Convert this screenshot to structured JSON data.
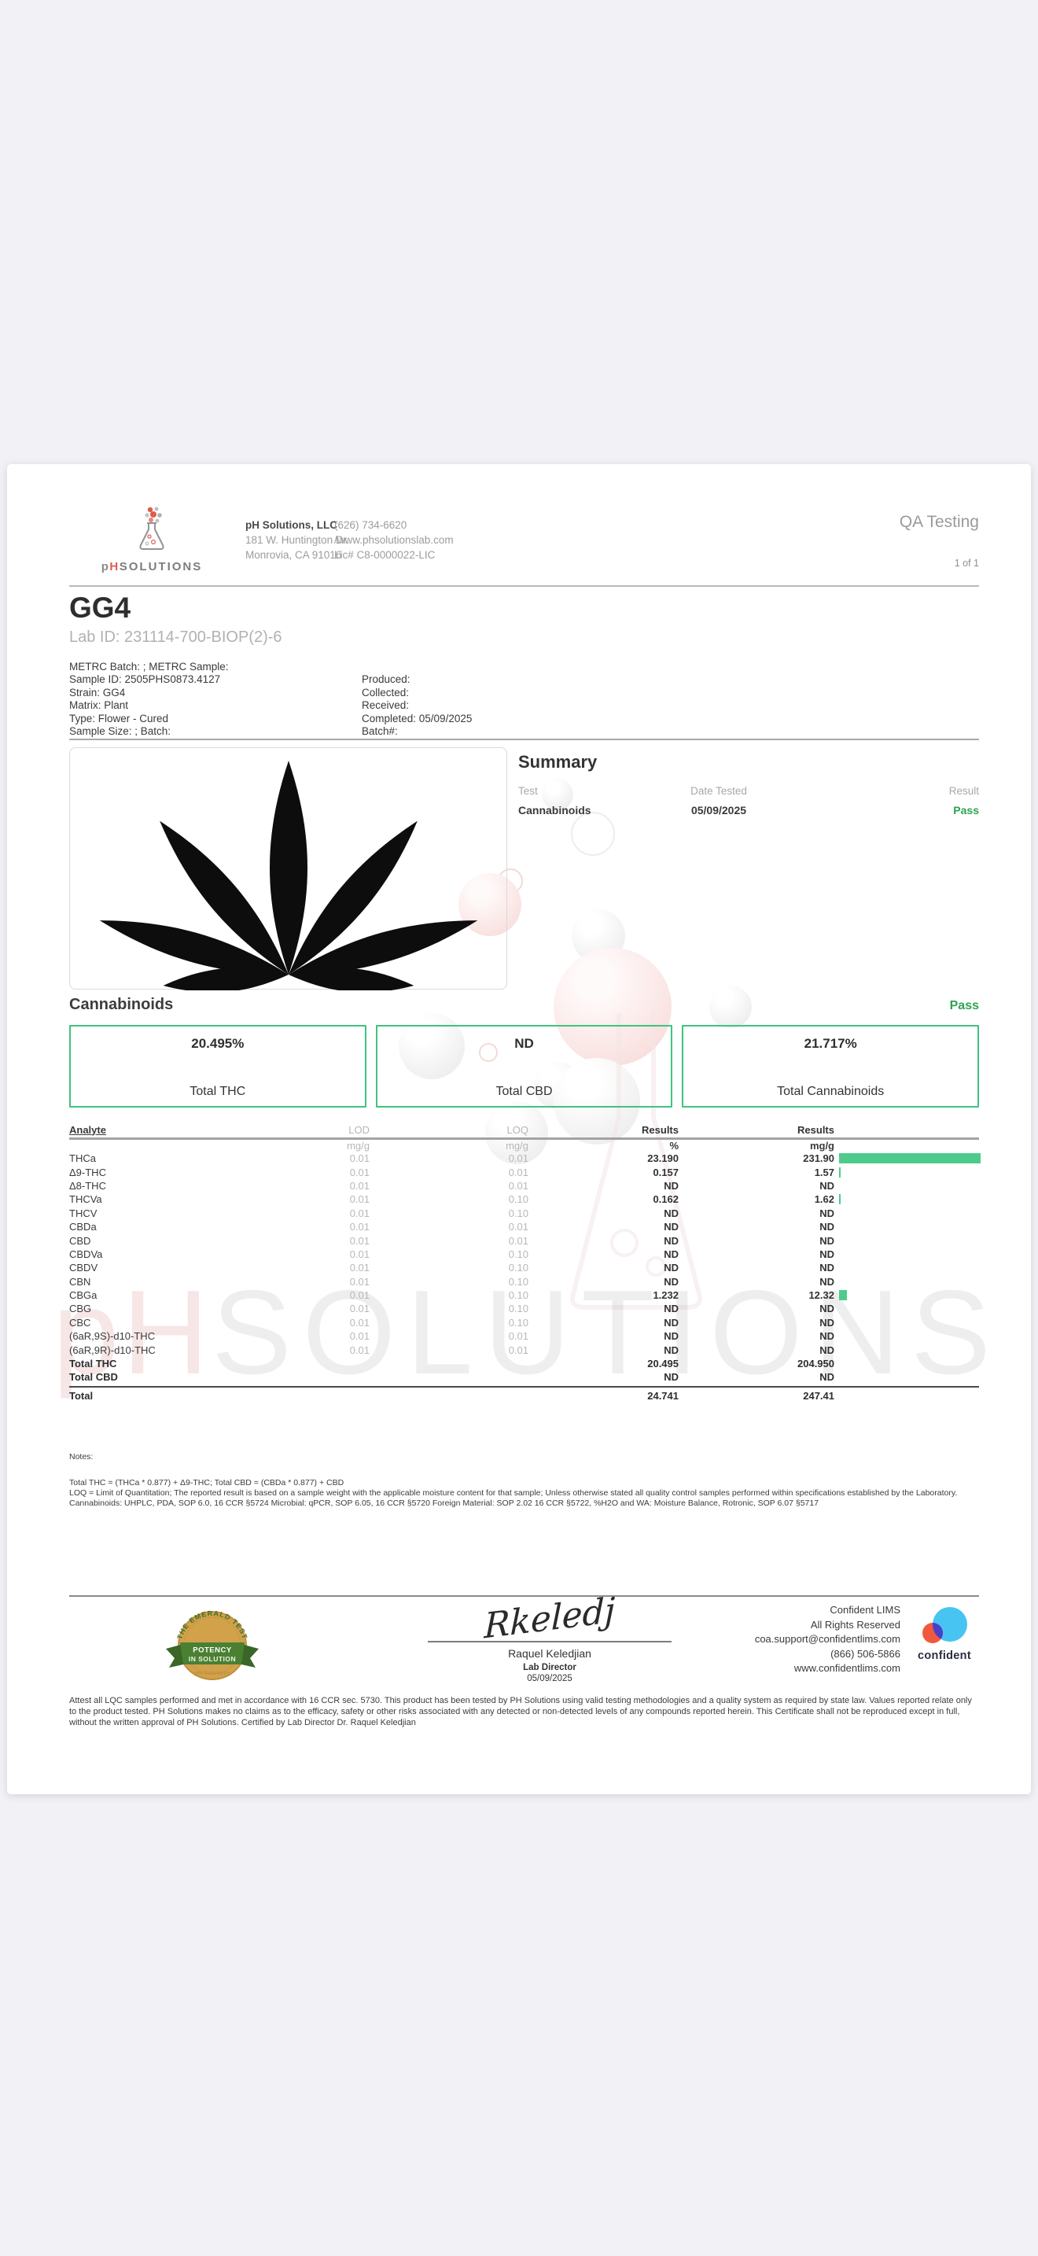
{
  "header": {
    "qa_label": "QA Testing",
    "page_num": "1 of 1",
    "logo": {
      "p": "p",
      "h": "H",
      "solutions": "SOLUTIONS"
    },
    "company": {
      "name": "pH Solutions, LLC",
      "address1": "181 W. Huntington Dr.",
      "address2": "Monrovia, CA 91016"
    },
    "contact": {
      "phone": "(626) 734-6620",
      "website": "/www.phsolutionslab.com",
      "license": "Lic# C8-0000022-LIC"
    }
  },
  "sample": {
    "name": "GG4",
    "lab_id": "Lab ID: 231114-700-BIOP(2)-6",
    "meta": [
      {
        "left": "METRC Batch: ; METRC Sample:",
        "right": ""
      },
      {
        "left": "Sample ID: 2505PHS0873.4127",
        "right": "Produced:"
      },
      {
        "left": "Strain: GG4",
        "right": "Collected:"
      },
      {
        "left": "Matrix: Plant",
        "right": "Received:"
      },
      {
        "left": "Type: Flower - Cured",
        "right": "Completed: 05/09/2025"
      },
      {
        "left": "Sample Size: ; Batch:",
        "right": "Batch#:"
      }
    ]
  },
  "summary": {
    "heading": "Summary",
    "columns": [
      "Test",
      "Date Tested",
      "Result"
    ],
    "rows": [
      {
        "test": "Cannabinoids",
        "date": "05/09/2025",
        "result": "Pass"
      }
    ]
  },
  "cannabinoids": {
    "heading": "Cannabinoids",
    "status": "Pass",
    "boxes": [
      {
        "value": "20.495%",
        "label": "Total THC"
      },
      {
        "value": "ND",
        "label": "Total CBD"
      },
      {
        "value": "21.717%",
        "label": "Total Cannabinoids"
      }
    ]
  },
  "results_table": {
    "columns": {
      "analyte": "Analyte",
      "lod": "LOD",
      "loq": "LOQ",
      "results_pct": "Results",
      "results_mgg": "Results"
    },
    "units": {
      "lod": "mg/g",
      "loq": "mg/g",
      "pct": "%",
      "mgg": "mg/g"
    },
    "bar_scale_max": 231.9,
    "rows": [
      {
        "analyte": "THCa",
        "lod": "0.01",
        "loq": "0.01",
        "pct": "23.190",
        "mgg": "231.90",
        "bar": 231.9
      },
      {
        "analyte": "Δ9-THC",
        "lod": "0.01",
        "loq": "0.01",
        "pct": "0.157",
        "mgg": "1.57",
        "bar": 1.57
      },
      {
        "analyte": "Δ8-THC",
        "lod": "0.01",
        "loq": "0.01",
        "pct": "ND",
        "mgg": "ND",
        "bar": 0
      },
      {
        "analyte": "THCVa",
        "lod": "0.01",
        "loq": "0.10",
        "pct": "0.162",
        "mgg": "1.62",
        "bar": 1.62
      },
      {
        "analyte": "THCV",
        "lod": "0.01",
        "loq": "0.10",
        "pct": "ND",
        "mgg": "ND",
        "bar": 0
      },
      {
        "analyte": "CBDa",
        "lod": "0.01",
        "loq": "0.01",
        "pct": "ND",
        "mgg": "ND",
        "bar": 0
      },
      {
        "analyte": "CBD",
        "lod": "0.01",
        "loq": "0.01",
        "pct": "ND",
        "mgg": "ND",
        "bar": 0
      },
      {
        "analyte": "CBDVa",
        "lod": "0.01",
        "loq": "0.10",
        "pct": "ND",
        "mgg": "ND",
        "bar": 0
      },
      {
        "analyte": "CBDV",
        "lod": "0.01",
        "loq": "0.10",
        "pct": "ND",
        "mgg": "ND",
        "bar": 0
      },
      {
        "analyte": "CBN",
        "lod": "0.01",
        "loq": "0.10",
        "pct": "ND",
        "mgg": "ND",
        "bar": 0
      },
      {
        "analyte": "CBGa",
        "lod": "0.01",
        "loq": "0.10",
        "pct": "1.232",
        "mgg": "12.32",
        "bar": 12.32
      },
      {
        "analyte": "CBG",
        "lod": "0.01",
        "loq": "0.10",
        "pct": "ND",
        "mgg": "ND",
        "bar": 0
      },
      {
        "analyte": "CBC",
        "lod": "0.01",
        "loq": "0.10",
        "pct": "ND",
        "mgg": "ND",
        "bar": 0
      },
      {
        "analyte": "(6aR,9S)-d10-THC",
        "lod": "0.01",
        "loq": "0.01",
        "pct": "ND",
        "mgg": "ND",
        "bar": 0
      },
      {
        "analyte": "(6aR,9R)-d10-THC",
        "lod": "0.01",
        "loq": "0.01",
        "pct": "ND",
        "mgg": "ND",
        "bar": 0
      }
    ],
    "totals": [
      {
        "analyte": "Total THC",
        "pct": "20.495",
        "mgg": "204.950",
        "final": false
      },
      {
        "analyte": "Total CBD",
        "pct": "ND",
        "mgg": "ND",
        "final": false
      },
      {
        "analyte": "Total",
        "pct": "24.741",
        "mgg": "247.41",
        "final": true
      }
    ]
  },
  "notes": {
    "heading": "Notes:",
    "line1": "Total THC = (THCa * 0.877) + Δ9-THC; Total CBD = (CBDa * 0.877) + CBD",
    "line2": "LOQ = Limit of Quantitation; The reported result is based on a sample weight with the applicable moisture content for that sample; Unless otherwise stated all quality control samples performed within specifications established by the Laboratory. Cannabinoids: UHPLC,  PDA, SOP 6.0, 16 CCR §5724 Microbial: qPCR, SOP 6.05, 16 CCR §5720 Foreign Material: SOP 2.02 16 CCR §5722, %H2O and WA: Moisture Balance,  Rotronic, SOP 6.07 §5717"
  },
  "footer": {
    "badge": {
      "arc": "THE EMERALD TEST",
      "line1": "POTENCY",
      "line2": "IN SOLUTION",
      "brand": "pH Solutions"
    },
    "signature": "Rkeledj",
    "signer_name": "Raquel Keledjian",
    "signer_title": "Lab Director",
    "sign_date": "05/09/2025",
    "lims": {
      "line1": "Confident LIMS",
      "line2": "All Rights Reserved",
      "line3": "coa.support@confidentlims.com",
      "line4": "(866) 506-5866",
      "line5": "www.confidentlims.com",
      "logo_text": "confident"
    },
    "disclaimer": "Attest all LQC samples performed and met in accordance with 16 CCR sec. 5730. This product has been tested by PH Solutions using valid testing methodologies and a quality system as required by state law. Values reported relate only to the product tested. PH Solutions makes no claims as to the efficacy, safety or other risks associated with any detected or non-detected levels of any compounds reported herein. This Certificate shall not be reproduced except in full, without the written approval of PH Solutions. Certified by Lab Director  Dr. Raquel Keledjian"
  },
  "watermark": {
    "ph": "pH",
    "solutions": "SOLUTIONS"
  },
  "colors": {
    "green_pass": "#2ca44e",
    "green_border": "#3fc380",
    "bar_green": "#4ecb8c"
  }
}
